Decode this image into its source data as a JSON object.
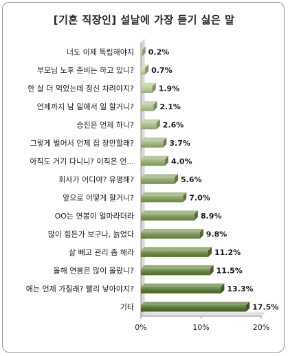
{
  "chart_data": {
    "type": "bar",
    "orientation": "horizontal",
    "title": "[기혼 직장인] 설날에 가장 듣기 싫은 말",
    "categories": [
      "너도 이제 독립해야지",
      "부모님 노후 준비는 하고 있니?",
      "한 살 더 먹었는데 정신 차려야지?",
      "언제까지 남 밑에서 일 할거니?",
      "승진은 언제 하니?",
      "그렇게 벌어서 언제 집 장만할래?",
      "아직도 거기 다니니? 이직은 안...",
      "회사가 어디야? 유명해?",
      "앞으로 어떻게 할거니?",
      "OO는 연봉이 얼마라더라",
      "많이 힘든가 보구나, 늙었다",
      "살 빼고 관리 좀 해라",
      "올해 연봉은 많이 올랐니?",
      "애는 언제 가질래? 빨리 낳아야지?",
      "기타"
    ],
    "values": [
      0.2,
      0.7,
      1.9,
      2.1,
      2.6,
      3.7,
      4.0,
      5.6,
      7.0,
      8.9,
      9.8,
      11.2,
      11.5,
      13.3,
      17.5
    ],
    "value_labels": [
      "0.2%",
      "0.7%",
      "1.9%",
      "2.1%",
      "2.6%",
      "3.7%",
      "4.0%",
      "5.6%",
      "7.0%",
      "8.9%",
      "9.8%",
      "11.2%",
      "11.5%",
      "13.3%",
      "17.5%"
    ],
    "xlim": [
      0,
      20
    ],
    "xticks": [
      0,
      10,
      20
    ],
    "xtick_labels": [
      "0%",
      "10%",
      "20%"
    ],
    "xlabel": "",
    "ylabel": "",
    "grid": false,
    "legend": "none",
    "bar_style": "3d",
    "colors": {
      "light": "#c3d6a3",
      "dark": "#4f6f25",
      "axis": "#8c8c8c",
      "wall": "#d9d9d9"
    }
  }
}
